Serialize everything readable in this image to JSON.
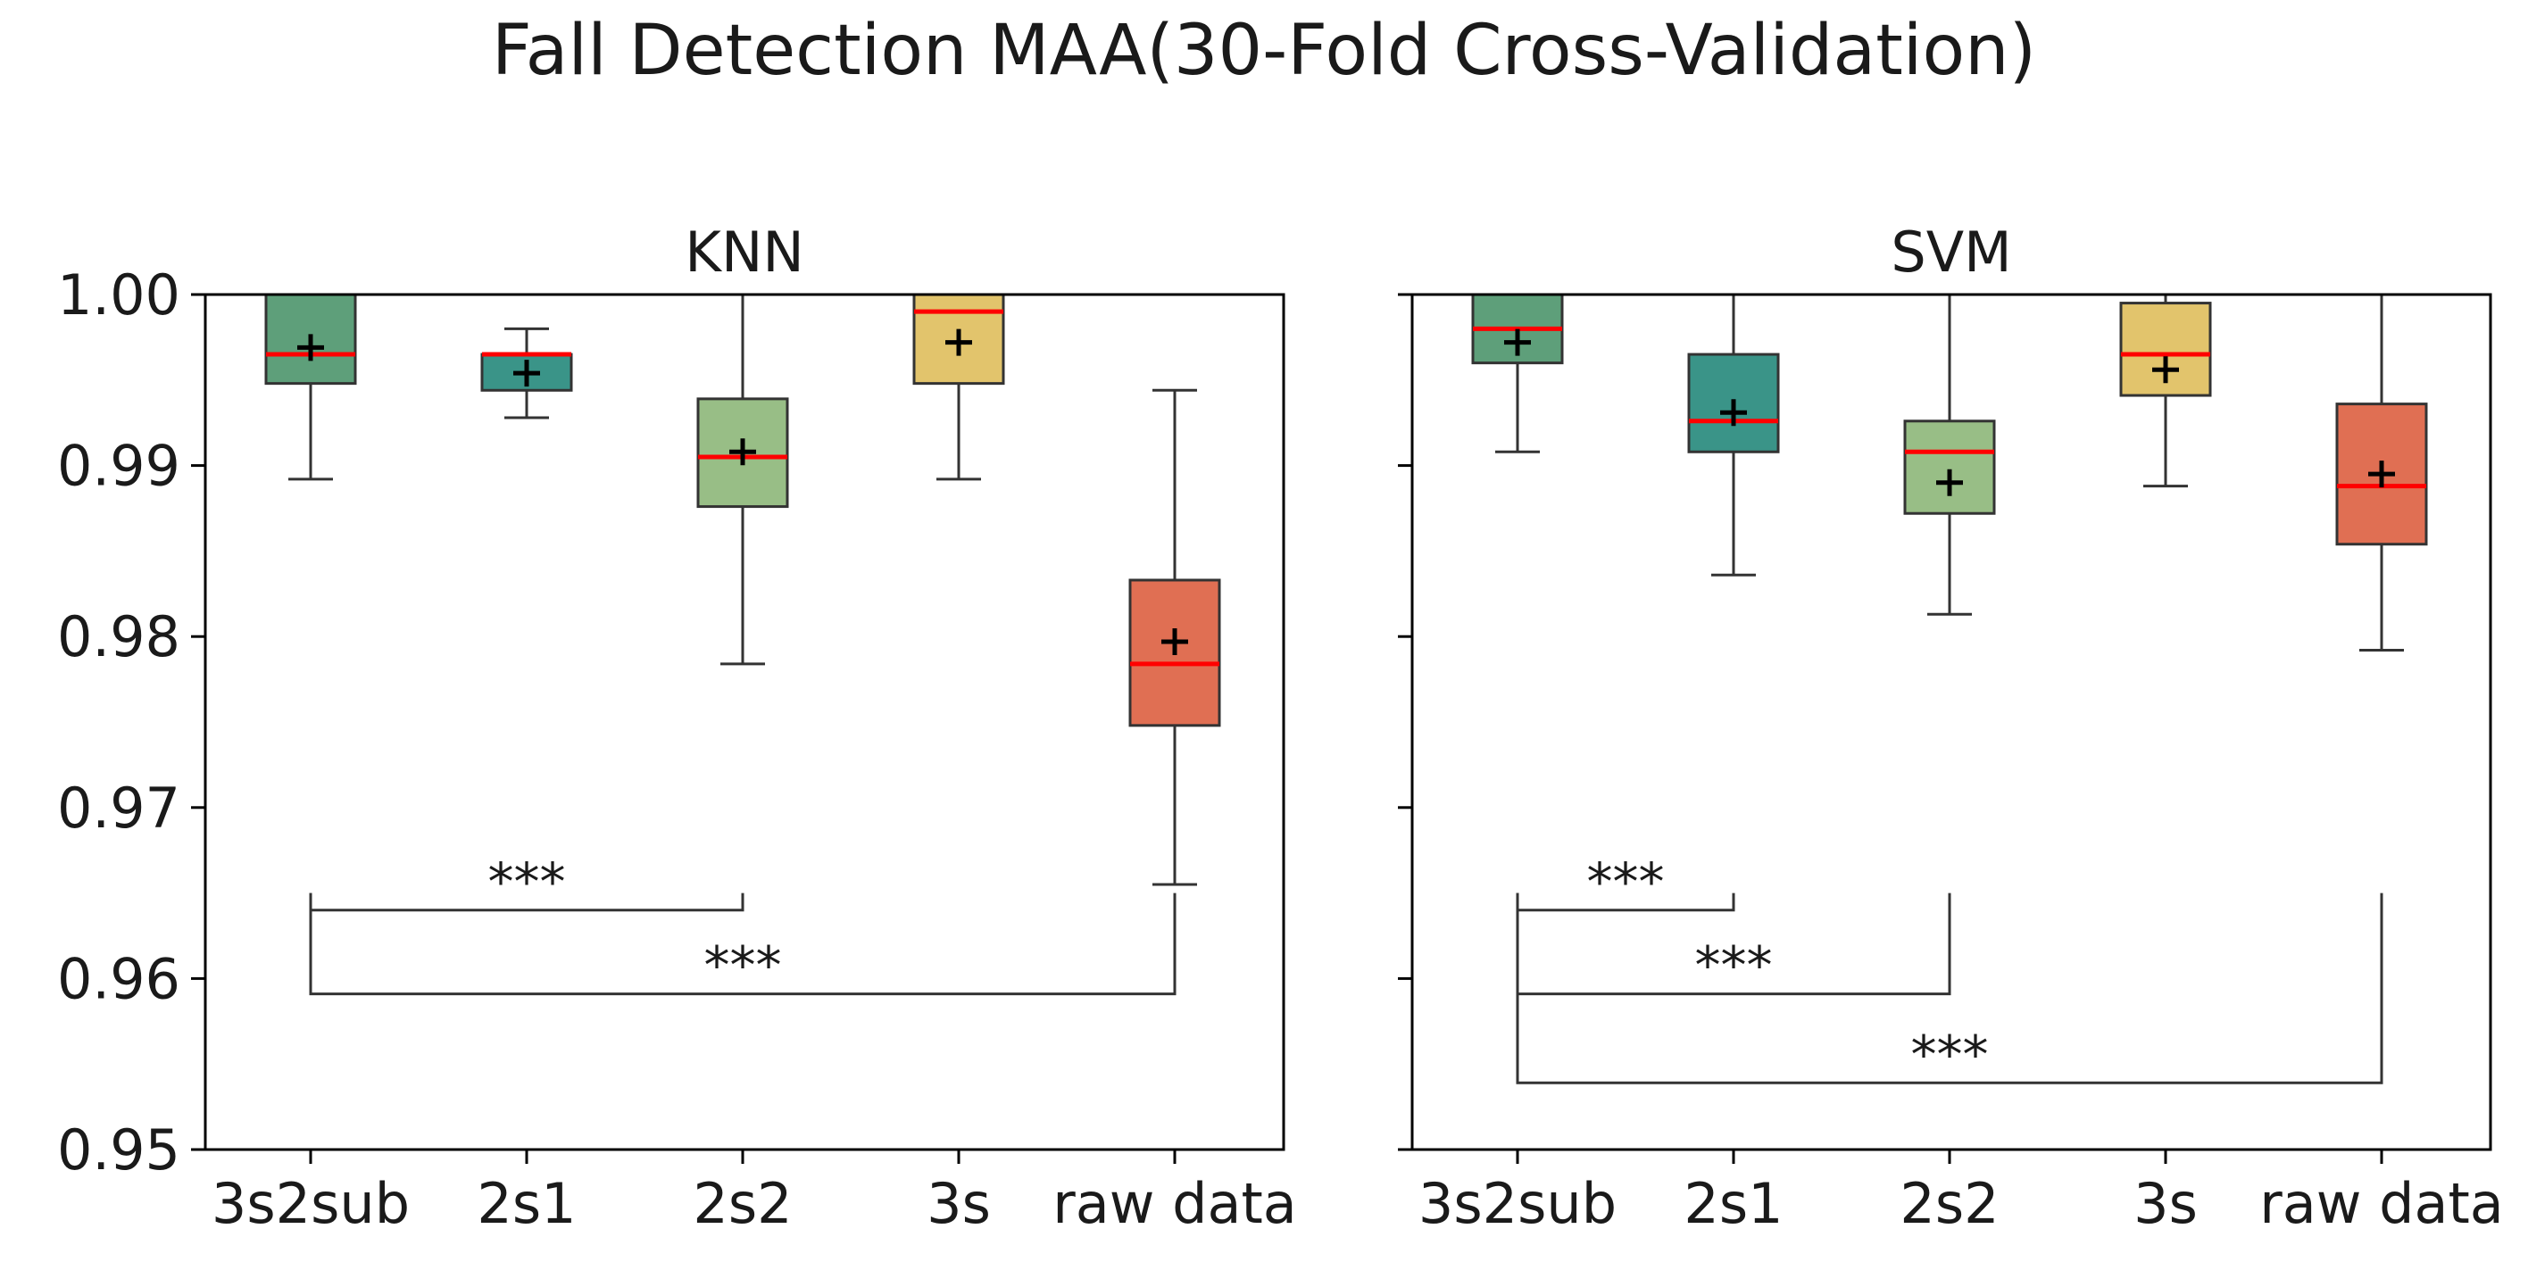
{
  "figure": {
    "title": "Fall Detection MAA(30-Fold Cross-Validation)"
  },
  "colors": {
    "3s2sub": "#5e9f7a",
    "2s1": "#3a9488",
    "2s2": "#98be86",
    "3s": "#e2c46c",
    "raw data": "#e06f53",
    "median": "#ff0000",
    "line": "#333333"
  },
  "chart_data": [
    {
      "type": "box",
      "title": "KNN",
      "categories": [
        "3s2sub",
        "2s1",
        "2s2",
        "3s",
        "raw data"
      ],
      "ylim": [
        0.95,
        1.0
      ],
      "yticks": [
        0.95,
        0.96,
        0.97,
        0.98,
        0.99,
        1.0
      ],
      "ytick_labels": [
        "0.95",
        "0.96",
        "0.97",
        "0.98",
        "0.99",
        "1.00"
      ],
      "boxes": [
        {
          "name": "3s2sub",
          "whislo": 0.9892,
          "q1": 0.9948,
          "med": 0.9965,
          "q3": 1.0,
          "whishi": 1.0,
          "mean": 0.9969
        },
        {
          "name": "2s1",
          "whislo": 0.9928,
          "q1": 0.9944,
          "med": 0.9965,
          "q3": 0.9965,
          "whishi": 0.998,
          "mean": 0.9954
        },
        {
          "name": "2s2",
          "whislo": 0.9784,
          "q1": 0.9876,
          "med": 0.9905,
          "q3": 0.9939,
          "whishi": 1.0,
          "mean": 0.9908
        },
        {
          "name": "3s",
          "whislo": 0.9892,
          "q1": 0.9948,
          "med": 0.999,
          "q3": 1.0,
          "whishi": 1.0,
          "mean": 0.9972
        },
        {
          "name": "raw data",
          "whislo": 0.9655,
          "q1": 0.9748,
          "med": 0.9784,
          "q3": 0.9833,
          "whishi": 0.9944,
          "mean": 0.9797
        }
      ],
      "significance": [
        {
          "from": "3s2sub",
          "to": "2s2",
          "y": 0.964,
          "label": "***"
        },
        {
          "from": "3s2sub",
          "to": "raw data",
          "y": 0.9591,
          "label": "***"
        }
      ]
    },
    {
      "type": "box",
      "title": "SVM",
      "categories": [
        "3s2sub",
        "2s1",
        "2s2",
        "3s",
        "raw data"
      ],
      "ylim": [
        0.95,
        1.0
      ],
      "yticks": [
        0.95,
        0.96,
        0.97,
        0.98,
        0.99,
        1.0
      ],
      "ytick_labels": [
        "",
        "",
        "",
        "",
        "",
        ""
      ],
      "boxes": [
        {
          "name": "3s2sub",
          "whislo": 0.9908,
          "q1": 0.996,
          "med": 0.998,
          "q3": 1.0,
          "whishi": 1.0,
          "mean": 0.9972
        },
        {
          "name": "2s1",
          "whislo": 0.9836,
          "q1": 0.9908,
          "med": 0.9926,
          "q3": 0.9965,
          "whishi": 1.0,
          "mean": 0.9931
        },
        {
          "name": "2s2",
          "whislo": 0.9813,
          "q1": 0.9872,
          "med": 0.9908,
          "q3": 0.9926,
          "whishi": 1.0,
          "mean": 0.989
        },
        {
          "name": "3s",
          "whislo": 0.9888,
          "q1": 0.9941,
          "med": 0.9965,
          "q3": 0.9995,
          "whishi": 1.0,
          "mean": 0.9956
        },
        {
          "name": "raw data",
          "whislo": 0.9792,
          "q1": 0.9854,
          "med": 0.9888,
          "q3": 0.9936,
          "whishi": 1.0,
          "mean": 0.9895
        }
      ],
      "significance": [
        {
          "from": "3s2sub",
          "to": "2s1",
          "y": 0.964,
          "label": "***"
        },
        {
          "from": "3s2sub",
          "to": "2s2",
          "y": 0.9591,
          "label": "***"
        },
        {
          "from": "3s2sub",
          "to": "raw data",
          "y": 0.9539,
          "label": "***"
        }
      ]
    }
  ]
}
